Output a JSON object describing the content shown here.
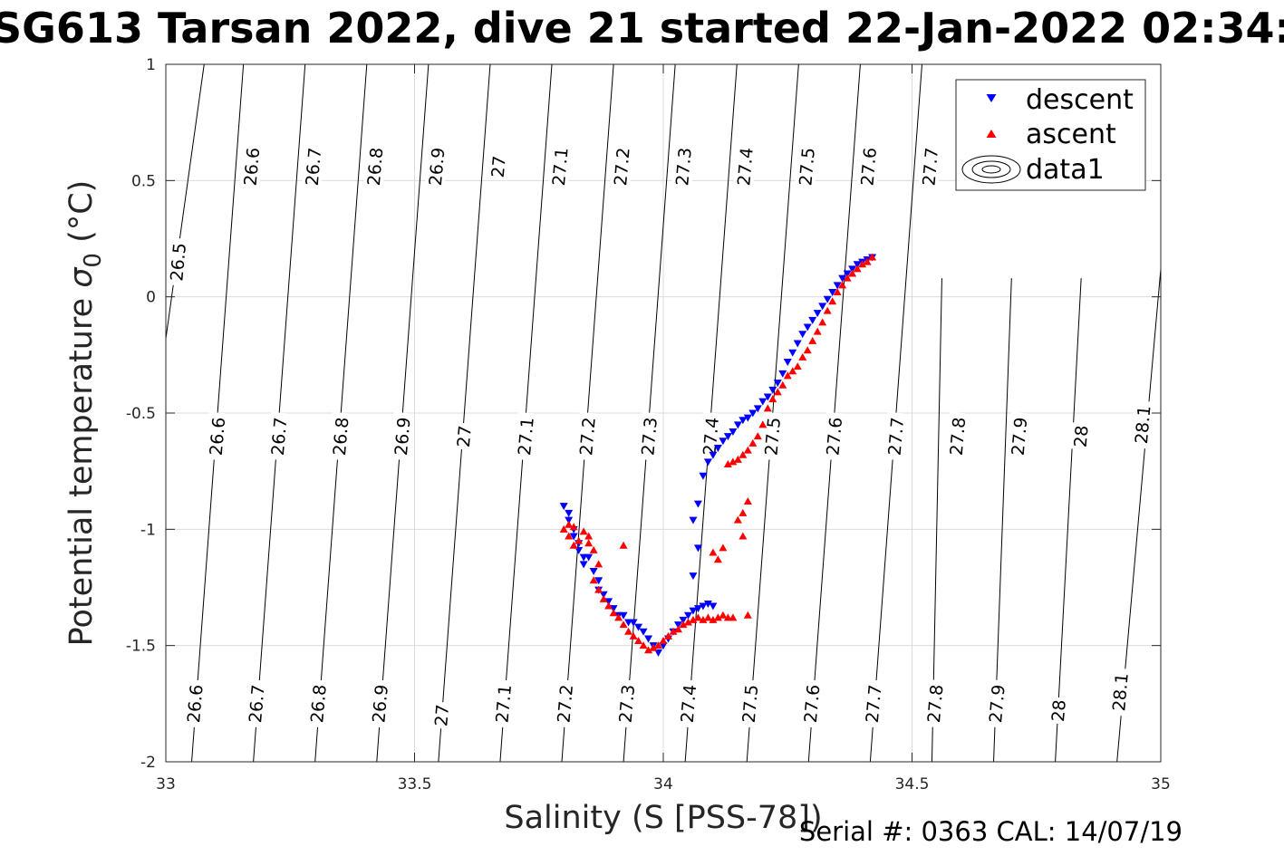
{
  "chart_data": {
    "type": "scatter",
    "title": "SG613 Tarsan 2022, dive 21 started 22-Jan-2022 02:34:",
    "xlabel": "Salinity (S [PSS-78])",
    "ylabel": "Potential temperature σ_0 (°C)",
    "ylabel_main": "Potential temperature ",
    "ylabel_sigma": "σ",
    "ylabel_sub": "0",
    "ylabel_unit": " (°C)",
    "xlim": [
      33,
      35
    ],
    "ylim": [
      -2,
      1
    ],
    "xticks": [
      33,
      33.5,
      34,
      34.5,
      35
    ],
    "xtick_labels": [
      "33",
      "33.5",
      "34",
      "34.5",
      "35"
    ],
    "yticks": [
      -2,
      -1.5,
      -1,
      -0.5,
      0,
      0.5,
      1
    ],
    "ytick_labels": [
      "-2",
      "-1.5",
      "-1",
      "-0.5",
      "0",
      "0.5",
      "1"
    ],
    "grid": true,
    "legend_position": "top-right",
    "legend": [
      "descent",
      "ascent",
      "data1"
    ],
    "footer": "Serial #: 0363  CAL: 14/07/19",
    "colors": {
      "descent": "#0000ff",
      "ascent": "#ff0000",
      "contour": "#000000",
      "grid": "#dcdcdc"
    },
    "contours": {
      "levels": [
        26.5,
        26.6,
        26.7,
        26.8,
        26.9,
        27.0,
        27.1,
        27.2,
        27.3,
        27.4,
        27.5,
        27.6,
        27.7,
        27.8,
        27.9,
        28.0,
        28.1
      ],
      "line_points": [
        [
          [
            33.077,
            1.0
          ],
          [
            33.0,
            -0.18
          ]
        ],
        [
          [
            33.156,
            1.0
          ],
          [
            33.052,
            -2.0
          ]
        ],
        [
          [
            33.28,
            1.0
          ],
          [
            33.176,
            -2.0
          ]
        ],
        [
          [
            33.404,
            1.0
          ],
          [
            33.3,
            -2.0
          ]
        ],
        [
          [
            33.528,
            1.0
          ],
          [
            33.424,
            -2.0
          ]
        ],
        [
          [
            33.652,
            1.0
          ],
          [
            33.548,
            -2.0
          ]
        ],
        [
          [
            33.776,
            1.0
          ],
          [
            33.672,
            -2.0
          ]
        ],
        [
          [
            33.9,
            1.0
          ],
          [
            33.796,
            -2.0
          ]
        ],
        [
          [
            34.024,
            1.0
          ],
          [
            33.92,
            -2.0
          ]
        ],
        [
          [
            34.148,
            1.0
          ],
          [
            34.044,
            -2.0
          ]
        ],
        [
          [
            34.272,
            1.0
          ],
          [
            34.168,
            -2.0
          ]
        ],
        [
          [
            34.396,
            1.0
          ],
          [
            34.292,
            -2.0
          ]
        ],
        [
          [
            34.52,
            1.0
          ],
          [
            34.416,
            -2.0
          ]
        ],
        [
          [
            34.56,
            0.08
          ],
          [
            34.54,
            -2.0
          ]
        ],
        [
          [
            34.7,
            0.08
          ],
          [
            34.664,
            -2.0
          ]
        ],
        [
          [
            34.84,
            0.08
          ],
          [
            34.788,
            -2.0
          ]
        ],
        [
          [
            35.0,
            0.12
          ],
          [
            34.912,
            -2.0
          ]
        ]
      ],
      "labels": [
        {
          "text": "26.5",
          "s": 33.024,
          "t": 0.15
        },
        {
          "text": "26.6",
          "s": 33.172,
          "t": 0.56
        },
        {
          "text": "26.7",
          "s": 33.296,
          "t": 0.56
        },
        {
          "text": "26.8",
          "s": 33.42,
          "t": 0.56
        },
        {
          "text": "26.9",
          "s": 33.544,
          "t": 0.56
        },
        {
          "text": "27",
          "s": 33.668,
          "t": 0.56
        },
        {
          "text": "27.1",
          "s": 33.792,
          "t": 0.56
        },
        {
          "text": "27.2",
          "s": 33.916,
          "t": 0.56
        },
        {
          "text": "27.3",
          "s": 34.04,
          "t": 0.56
        },
        {
          "text": "27.4",
          "s": 34.164,
          "t": 0.56
        },
        {
          "text": "27.5",
          "s": 34.288,
          "t": 0.56
        },
        {
          "text": "27.6",
          "s": 34.412,
          "t": 0.56
        },
        {
          "text": "27.7",
          "s": 34.536,
          "t": 0.56
        },
        {
          "text": "26.6",
          "s": 33.103,
          "t": -0.6
        },
        {
          "text": "26.7",
          "s": 33.227,
          "t": -0.6
        },
        {
          "text": "26.8",
          "s": 33.351,
          "t": -0.6
        },
        {
          "text": "26.9",
          "s": 33.475,
          "t": -0.6
        },
        {
          "text": "27",
          "s": 33.599,
          "t": -0.6
        },
        {
          "text": "27.1",
          "s": 33.723,
          "t": -0.6
        },
        {
          "text": "27.2",
          "s": 33.847,
          "t": -0.6
        },
        {
          "text": "27.3",
          "s": 33.971,
          "t": -0.6
        },
        {
          "text": "27.4",
          "s": 34.095,
          "t": -0.6
        },
        {
          "text": "27.5",
          "s": 34.219,
          "t": -0.6
        },
        {
          "text": "27.6",
          "s": 34.343,
          "t": -0.6
        },
        {
          "text": "27.7",
          "s": 34.467,
          "t": -0.6
        },
        {
          "text": "27.8",
          "s": 34.591,
          "t": -0.6
        },
        {
          "text": "27.9",
          "s": 34.715,
          "t": -0.6
        },
        {
          "text": "28",
          "s": 34.839,
          "t": -0.6
        },
        {
          "text": "28.1",
          "s": 34.963,
          "t": -0.55
        },
        {
          "text": "26.6",
          "s": 33.058,
          "t": -1.75
        },
        {
          "text": "26.7",
          "s": 33.182,
          "t": -1.75
        },
        {
          "text": "26.8",
          "s": 33.306,
          "t": -1.75
        },
        {
          "text": "26.9",
          "s": 33.43,
          "t": -1.75
        },
        {
          "text": "27",
          "s": 33.554,
          "t": -1.8
        },
        {
          "text": "27.1",
          "s": 33.678,
          "t": -1.75
        },
        {
          "text": "27.2",
          "s": 33.802,
          "t": -1.75
        },
        {
          "text": "27.3",
          "s": 33.926,
          "t": -1.75
        },
        {
          "text": "27.4",
          "s": 34.05,
          "t": -1.75
        },
        {
          "text": "27.5",
          "s": 34.174,
          "t": -1.75
        },
        {
          "text": "27.6",
          "s": 34.298,
          "t": -1.75
        },
        {
          "text": "27.7",
          "s": 34.422,
          "t": -1.75
        },
        {
          "text": "27.8",
          "s": 34.546,
          "t": -1.75
        },
        {
          "text": "27.9",
          "s": 34.67,
          "t": -1.75
        },
        {
          "text": "28",
          "s": 34.794,
          "t": -1.78
        },
        {
          "text": "28.1",
          "s": 34.918,
          "t": -1.7
        }
      ]
    },
    "series": [
      {
        "name": "descent",
        "marker": "triangle-down",
        "points": [
          [
            33.8,
            -0.9
          ],
          [
            33.81,
            -0.93
          ],
          [
            33.81,
            -0.96
          ],
          [
            33.82,
            -1.0
          ],
          [
            33.82,
            -1.03
          ],
          [
            33.83,
            -1.06
          ],
          [
            33.83,
            -1.09
          ],
          [
            33.84,
            -1.12
          ],
          [
            33.84,
            -1.15
          ],
          [
            33.85,
            -1.12
          ],
          [
            33.86,
            -1.18
          ],
          [
            33.87,
            -1.22
          ],
          [
            33.87,
            -1.26
          ],
          [
            33.88,
            -1.28
          ],
          [
            33.89,
            -1.31
          ],
          [
            33.9,
            -1.34
          ],
          [
            33.91,
            -1.37
          ],
          [
            33.92,
            -1.37
          ],
          [
            33.93,
            -1.4
          ],
          [
            33.94,
            -1.4
          ],
          [
            33.95,
            -1.42
          ],
          [
            33.96,
            -1.44
          ],
          [
            33.97,
            -1.47
          ],
          [
            33.98,
            -1.5
          ],
          [
            33.99,
            -1.53
          ],
          [
            34.0,
            -1.5
          ],
          [
            34.01,
            -1.47
          ],
          [
            34.02,
            -1.44
          ],
          [
            34.03,
            -1.41
          ],
          [
            34.04,
            -1.39
          ],
          [
            34.05,
            -1.37
          ],
          [
            34.06,
            -1.35
          ],
          [
            34.07,
            -1.34
          ],
          [
            34.08,
            -1.33
          ],
          [
            34.09,
            -1.32
          ],
          [
            34.1,
            -1.33
          ],
          [
            34.06,
            -1.2
          ],
          [
            34.07,
            -1.08
          ],
          [
            34.06,
            -0.96
          ],
          [
            34.07,
            -0.89
          ],
          [
            34.08,
            -0.77
          ],
          [
            34.09,
            -0.71
          ],
          [
            34.1,
            -0.68
          ],
          [
            34.11,
            -0.65
          ],
          [
            34.12,
            -0.62
          ],
          [
            34.13,
            -0.6
          ],
          [
            34.14,
            -0.58
          ],
          [
            34.15,
            -0.55
          ],
          [
            34.16,
            -0.53
          ],
          [
            34.17,
            -0.52
          ],
          [
            34.18,
            -0.5
          ],
          [
            34.19,
            -0.48
          ],
          [
            34.2,
            -0.45
          ],
          [
            34.21,
            -0.43
          ],
          [
            34.22,
            -0.4
          ],
          [
            34.23,
            -0.37
          ],
          [
            34.24,
            -0.33
          ],
          [
            34.25,
            -0.28
          ],
          [
            34.26,
            -0.24
          ],
          [
            34.27,
            -0.2
          ],
          [
            34.28,
            -0.16
          ],
          [
            34.29,
            -0.13
          ],
          [
            34.3,
            -0.1
          ],
          [
            34.31,
            -0.07
          ],
          [
            34.32,
            -0.04
          ],
          [
            34.33,
            -0.01
          ],
          [
            34.34,
            0.02
          ],
          [
            34.35,
            0.05
          ],
          [
            34.36,
            0.08
          ],
          [
            34.37,
            0.1
          ],
          [
            34.38,
            0.12
          ],
          [
            34.39,
            0.14
          ],
          [
            34.4,
            0.15
          ],
          [
            34.41,
            0.16
          ],
          [
            34.42,
            0.17
          ]
        ]
      },
      {
        "name": "ascent",
        "marker": "triangle-up",
        "points": [
          [
            33.8,
            -1.0
          ],
          [
            33.81,
            -0.98
          ],
          [
            33.81,
            -1.03
          ],
          [
            33.82,
            -1.07
          ],
          [
            33.82,
            -0.99
          ],
          [
            33.83,
            -1.05
          ],
          [
            33.84,
            -1.01
          ],
          [
            33.85,
            -1.03
          ],
          [
            33.85,
            -1.06
          ],
          [
            33.86,
            -1.09
          ],
          [
            33.87,
            -1.15
          ],
          [
            33.86,
            -1.22
          ],
          [
            33.87,
            -1.26
          ],
          [
            33.88,
            -1.3
          ],
          [
            33.89,
            -1.33
          ],
          [
            33.9,
            -1.36
          ],
          [
            33.91,
            -1.38
          ],
          [
            33.92,
            -1.41
          ],
          [
            33.93,
            -1.44
          ],
          [
            33.94,
            -1.46
          ],
          [
            33.95,
            -1.48
          ],
          [
            33.96,
            -1.5
          ],
          [
            33.97,
            -1.52
          ],
          [
            33.98,
            -1.51
          ],
          [
            33.99,
            -1.5
          ],
          [
            34.0,
            -1.48
          ],
          [
            34.01,
            -1.46
          ],
          [
            34.02,
            -1.44
          ],
          [
            34.03,
            -1.43
          ],
          [
            34.04,
            -1.41
          ],
          [
            34.05,
            -1.4
          ],
          [
            34.06,
            -1.39
          ],
          [
            34.07,
            -1.38
          ],
          [
            34.08,
            -1.39
          ],
          [
            34.09,
            -1.38
          ],
          [
            34.1,
            -1.39
          ],
          [
            34.11,
            -1.38
          ],
          [
            34.12,
            -1.37
          ],
          [
            34.13,
            -1.38
          ],
          [
            34.14,
            -1.38
          ],
          [
            34.17,
            -1.37
          ],
          [
            33.92,
            -1.07
          ],
          [
            34.1,
            -1.1
          ],
          [
            34.11,
            -1.13
          ],
          [
            34.12,
            -1.08
          ],
          [
            34.16,
            -1.03
          ],
          [
            34.15,
            -0.96
          ],
          [
            34.16,
            -0.93
          ],
          [
            34.17,
            -0.88
          ],
          [
            34.13,
            -0.72
          ],
          [
            34.14,
            -0.71
          ],
          [
            34.15,
            -0.7
          ],
          [
            34.16,
            -0.68
          ],
          [
            34.17,
            -0.66
          ],
          [
            34.18,
            -0.63
          ],
          [
            34.19,
            -0.6
          ],
          [
            34.2,
            -0.55
          ],
          [
            34.21,
            -0.48
          ],
          [
            34.22,
            -0.44
          ],
          [
            34.23,
            -0.41
          ],
          [
            34.24,
            -0.38
          ],
          [
            34.25,
            -0.34
          ],
          [
            34.26,
            -0.32
          ],
          [
            34.27,
            -0.3
          ],
          [
            34.28,
            -0.26
          ],
          [
            34.29,
            -0.23
          ],
          [
            34.3,
            -0.19
          ],
          [
            34.31,
            -0.15
          ],
          [
            34.32,
            -0.11
          ],
          [
            34.33,
            -0.06
          ],
          [
            34.34,
            -0.02
          ],
          [
            34.35,
            0.02
          ],
          [
            34.36,
            0.05
          ],
          [
            34.37,
            0.08
          ],
          [
            34.38,
            0.1
          ],
          [
            34.39,
            0.12
          ],
          [
            34.4,
            0.14
          ],
          [
            34.41,
            0.15
          ],
          [
            34.42,
            0.17
          ]
        ]
      }
    ]
  }
}
